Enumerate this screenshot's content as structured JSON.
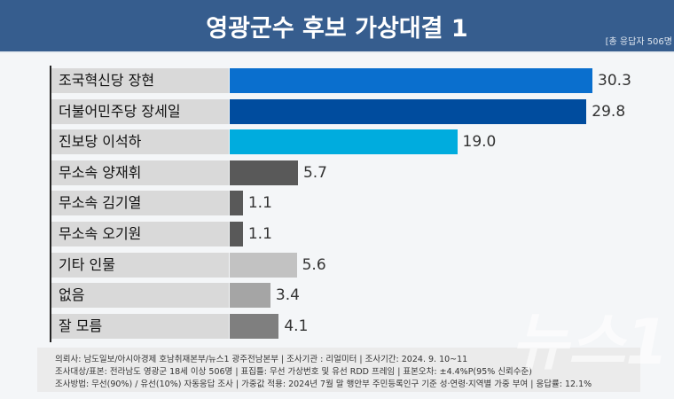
{
  "header": {
    "title": "영광군수 후보 가상대결 1",
    "respondents": "[총 응답자 506명"
  },
  "chart_data": {
    "type": "bar",
    "orientation": "horizontal",
    "title": "영광군수 후보 가상대결 1",
    "categories": [
      "조국혁신당 장현",
      "더불어민주당 장세일",
      "진보당 이석하",
      "무소속 양재휘",
      "무소속 김기열",
      "무소속 오기원",
      "기타 인물",
      "없음",
      "잘 모름"
    ],
    "values": [
      30.3,
      29.8,
      19.0,
      5.7,
      1.1,
      1.1,
      5.6,
      3.4,
      4.1
    ],
    "value_labels": [
      "30.3",
      "29.8",
      "19.0",
      "5.7",
      "1.1",
      "1.1",
      "5.6",
      "3.4",
      "4.1"
    ],
    "colors": [
      "#0a6fce",
      "#004c9e",
      "#00acde",
      "#595959",
      "#595959",
      "#595959",
      "#c2c2c2",
      "#a5a5a5",
      "#7f7f7f"
    ],
    "grid": false,
    "legend": "none"
  },
  "footer": {
    "line1": "의뢰사: 남도일보/아시아경제 호남취재본부/뉴스1 광주전남본부 | 조사기관 : 리얼미터 | 조사기간: 2024. 9. 10~11",
    "line2": "조사대상/표본: 전라남도 영광군 18세 이상 506명 | 표집틀: 무선 가상번호 및 유선 RDD 프레임 | 표본오차: ±4.4%P(95% 신뢰수준)",
    "line3": "조사방법: 무선(90%) / 유선(10%) 자동응답 조사 | 가중값 적용: 2024년 7월 말 행안부 주민등록인구 기준 성·연령·지역별 가중 부여 | 응답률: 12.1%"
  },
  "watermark": "뉴스1"
}
